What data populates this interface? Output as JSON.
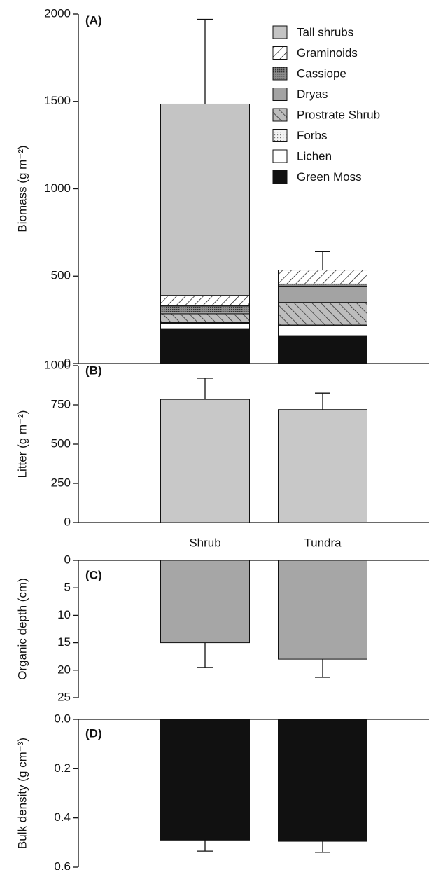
{
  "chart_data": [
    {
      "type": "bar",
      "stacked": true,
      "label": "(A)",
      "ylabel": "Biomass (g m⁻²)",
      "ylim": [
        0,
        2000
      ],
      "yticks": [
        0,
        500,
        1000,
        1500,
        2000
      ],
      "legend": "upper right",
      "series": [
        {
          "name": "Green Moss",
          "color": "#111111",
          "values": [
            200,
            160
          ]
        },
        {
          "name": "Lichen",
          "color": "#ffffff",
          "values": [
            30,
            55
          ]
        },
        {
          "name": "Forbs",
          "color": "#f2f2f2",
          "pattern": "dots-light",
          "values": [
            5,
            5
          ]
        },
        {
          "name": "Prostrate Shrub",
          "color": "#bdbdbd",
          "pattern": "backhatch",
          "values": [
            50,
            130
          ]
        },
        {
          "name": "Dryas",
          "color": "#a3a3a3",
          "values": [
            10,
            90
          ]
        },
        {
          "name": "Cassiope",
          "color": "#8c8c8c",
          "pattern": "dots",
          "values": [
            35,
            15
          ]
        },
        {
          "name": "Graminoids",
          "color": "#ffffff",
          "pattern": "hatch",
          "values": [
            60,
            80
          ]
        },
        {
          "name": "Tall shrubs",
          "color": "#c4c4c4",
          "values": [
            1095,
            0
          ]
        }
      ],
      "errors": [
        485,
        105
      ]
    },
    {
      "type": "bar",
      "label": "(B)",
      "ylabel": "Litter (g m⁻²)",
      "color": "#c8c8c8",
      "ylim": [
        0,
        1000
      ],
      "yticks": [
        0,
        250,
        500,
        750,
        1000
      ],
      "values": [
        785,
        720
      ],
      "errors": [
        135,
        105
      ]
    },
    {
      "type": "bar",
      "label": "(C)",
      "ylabel": "Organic depth (cm)",
      "color": "#a6a6a6",
      "categories": [
        "Shrub",
        "Tundra"
      ],
      "inverted": true,
      "ylim": [
        0,
        25
      ],
      "yticks": [
        0,
        5,
        10,
        15,
        20,
        25
      ],
      "values": [
        15,
        18
      ],
      "errors": [
        4.5,
        3.3
      ]
    },
    {
      "type": "bar",
      "label": "(D)",
      "ylabel": "Bulk density (g cm⁻³)",
      "color": "#111111",
      "inverted": true,
      "ylim": [
        0,
        0.6
      ],
      "yticks": [
        {
          "value": 0,
          "label": "0.0"
        },
        0.2,
        0.4,
        0.6
      ],
      "values": [
        0.49,
        0.495
      ],
      "errors": [
        0.045,
        0.045
      ]
    }
  ]
}
